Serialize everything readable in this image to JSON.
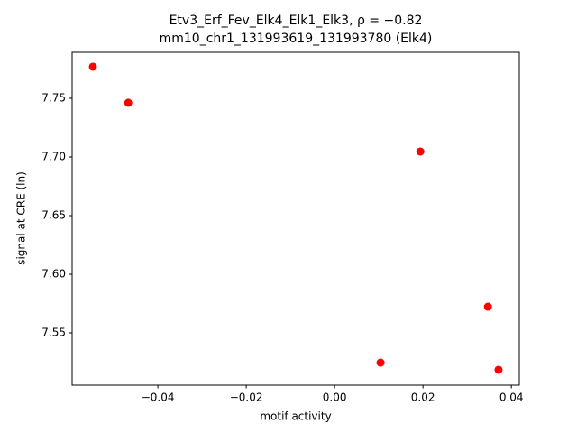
{
  "chart_data": {
    "type": "scatter",
    "title": "Etv3_Erf_Fev_Elk4_Elk1_Elk3, ρ = −0.82",
    "subtitle": "mm10_chr1_131993619_131993780 (Elk4)",
    "x_label": "motif activity",
    "y_label": "signal at CRE (ln)",
    "x": [
      -0.0547,
      -0.0467,
      0.0194,
      0.0347,
      0.0104,
      0.0371
    ],
    "values": [
      7.7769,
      7.7462,
      7.7046,
      7.5723,
      7.5246,
      7.5185
    ],
    "color": "#ff0000",
    "xlim": [
      -0.0594,
      0.0418
    ],
    "ylim": [
      7.5054,
      7.7892
    ],
    "xticks": [
      {
        "value": -0.04,
        "label": "−0.04"
      },
      {
        "value": -0.02,
        "label": "−0.02"
      },
      {
        "value": 0,
        "label": "0.00"
      },
      0.02,
      0.04
    ],
    "yticks": [
      7.55,
      {
        "value": 7.6,
        "label": "7.60"
      },
      7.65,
      {
        "value": 7.7,
        "label": "7.70"
      },
      7.75
    ],
    "grid": false
  }
}
